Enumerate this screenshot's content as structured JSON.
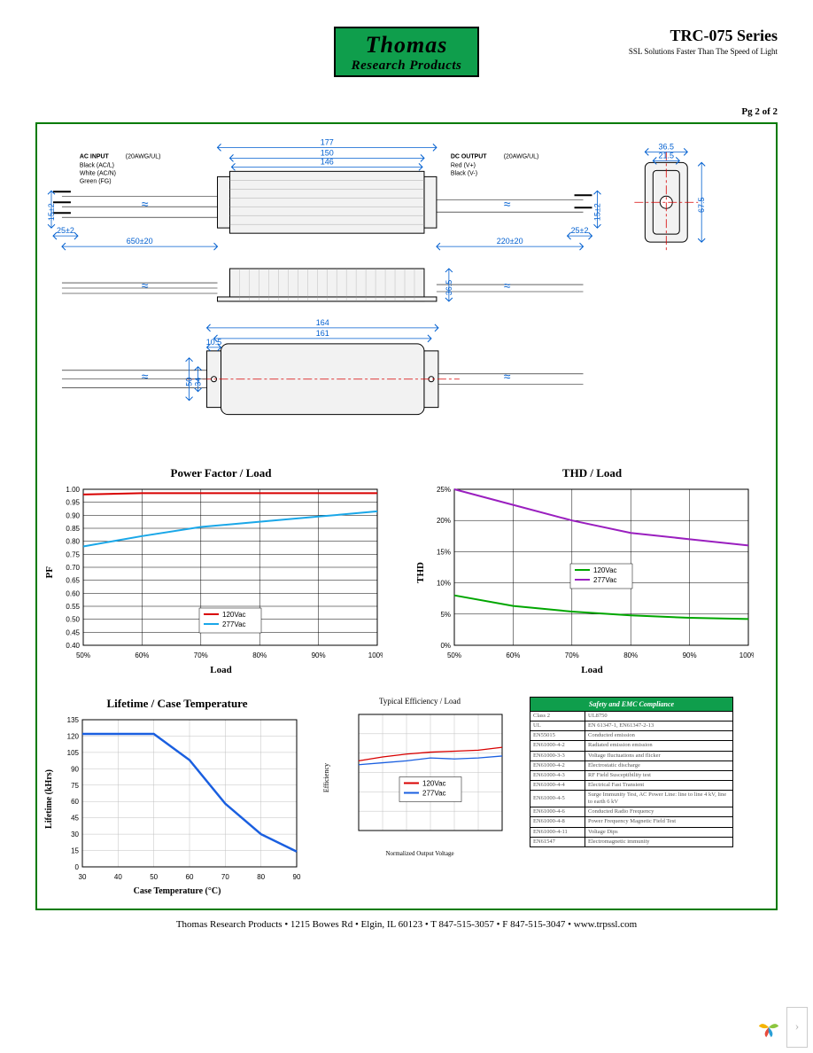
{
  "logo": {
    "line1": "Thomas",
    "line2": "Research Products"
  },
  "title": {
    "main": "TRC-075 Series",
    "sub": "SSL Solutions Faster Than The Speed of Light"
  },
  "page": "Pg 2 of 2",
  "footer": "Thomas Research Products  •  1215 Bowes Rd  •  Elgin, IL 60123  •  T 847-515-3057  •  F 847-515-3047  •  www.trpssl.com",
  "mech": {
    "dim_color": "#005fd0",
    "input_title": "AC INPUT",
    "input_awg": "(20AWG/UL)",
    "output_title": "DC OUTPUT",
    "output_awg": "(20AWG/UL)",
    "in_wires": [
      [
        "Black",
        "(AC/L)"
      ],
      [
        "White",
        "(AC/N)"
      ],
      [
        "Green",
        "(FG)"
      ]
    ],
    "out_wires": [
      [
        "Red",
        "(V+)"
      ],
      [
        "Black",
        "(V-)"
      ]
    ],
    "L_cable_in": "650±20",
    "L_cable_out": "220±20",
    "strip_in": "25±2",
    "strip_out": "25±2",
    "h_strip": "15±2",
    "top_177": "177",
    "top_150": "150",
    "top_146": "146",
    "side_h": "36.5",
    "end_w": "36.5",
    "end_iw": "21.5",
    "end_h": "67.5",
    "plan_164": "164",
    "plan_161": "161",
    "plan_105": "10.5",
    "plan_50": "50",
    "plan_34": "34",
    "wire_break": "≈"
  },
  "chart_pf": {
    "type": "line",
    "title": "Power Factor / Load",
    "ylabel": "PF",
    "xlabel": "Load",
    "xlim": [
      50,
      100
    ],
    "xstep": 10,
    "x_suffix": "%",
    "ylim": [
      0.4,
      1.0
    ],
    "ystep": 0.05,
    "grid_color": "#000",
    "bg": "#fff",
    "series": [
      {
        "name": "120Vac",
        "color": "#d80000",
        "width": 2,
        "x": [
          50,
          60,
          70,
          80,
          90,
          100
        ],
        "y": [
          0.98,
          0.985,
          0.985,
          0.985,
          0.985,
          0.985
        ]
      },
      {
        "name": "277Vac",
        "color": "#1aa7e8",
        "width": 2,
        "x": [
          50,
          60,
          70,
          80,
          90,
          100
        ],
        "y": [
          0.78,
          0.82,
          0.855,
          0.875,
          0.895,
          0.915
        ]
      }
    ],
    "legend_pos": "inside-bottom-center"
  },
  "chart_thd": {
    "type": "line",
    "title": "THD / Load",
    "ylabel": "THD",
    "xlabel": "Load",
    "xlim": [
      50,
      100
    ],
    "xstep": 10,
    "x_suffix": "%",
    "ylim": [
      0,
      25
    ],
    "ystep": 5,
    "y_suffix": "%",
    "grid_color": "#000",
    "bg": "#fff",
    "series": [
      {
        "name": "120Vac",
        "color": "#00a600",
        "width": 2,
        "x": [
          50,
          60,
          70,
          80,
          90,
          100
        ],
        "y": [
          8,
          6.3,
          5.4,
          4.8,
          4.4,
          4.2
        ]
      },
      {
        "name": "277Vac",
        "color": "#9a1fbf",
        "width": 2,
        "x": [
          50,
          60,
          70,
          80,
          90,
          100
        ],
        "y": [
          25,
          22.5,
          20,
          18,
          17,
          16
        ]
      }
    ],
    "legend_pos": "inside-center"
  },
  "chart_life": {
    "type": "line",
    "title": "Lifetime / Case Temperature",
    "ylabel": "Lifetime   (kHrs)",
    "xlabel": "Case Temperature     (°C)",
    "xlim": [
      30,
      90
    ],
    "xstep": 10,
    "ylim": [
      0,
      135
    ],
    "ystep": 15,
    "grid_color": "#c0c0c0",
    "bg": "#fff",
    "series": [
      {
        "name": "Lifetime",
        "color": "#1a5fe0",
        "width": 2.5,
        "x": [
          30,
          40,
          50,
          60,
          70,
          80,
          90
        ],
        "y": [
          122,
          122,
          122,
          98,
          58,
          30,
          14
        ]
      }
    ]
  },
  "chart_eff": {
    "type": "line",
    "title": "Typical Efficiency / Load",
    "ylabel": "Efficiency",
    "xlabel": "Normalized Output Voltage",
    "xlim": [
      0,
      6
    ],
    "xstep": 1,
    "hide_xticks": true,
    "ylim": [
      0,
      6
    ],
    "ystep": 1,
    "hide_yticks": true,
    "grid_color": "#c0c0c0",
    "bg": "#fff",
    "series": [
      {
        "name": "120Vac",
        "color": "#d80000",
        "width": 1.3,
        "x": [
          0,
          1,
          2,
          3,
          4,
          5,
          6
        ],
        "y": [
          3.6,
          3.8,
          3.95,
          4.05,
          4.1,
          4.15,
          4.3
        ]
      },
      {
        "name": "277Vac",
        "color": "#1a5fe0",
        "width": 1.3,
        "x": [
          0,
          1,
          2,
          3,
          4,
          5,
          6
        ],
        "y": [
          3.4,
          3.5,
          3.6,
          3.75,
          3.7,
          3.75,
          3.85
        ]
      }
    ],
    "legend_pos": "inside-center-low"
  },
  "compliance": {
    "header": "Safety and EMC Compliance",
    "rows": [
      [
        "Class 2",
        "UL8750"
      ],
      [
        "UL",
        "EN 61347-1, EN61347-2-13"
      ],
      [
        "EN55015",
        "Conducted emission"
      ],
      [
        "EN61000-4-2",
        "Radiated emission emission"
      ],
      [
        "EN61000-3-3",
        "Voltage fluctuations and flicker"
      ],
      [
        "EN61000-4-2",
        "Electrostatic discharge"
      ],
      [
        "EN61000-4-3",
        "RF Field Susceptibility test"
      ],
      [
        "EN61000-4-4",
        "Electrical Fast Transient"
      ],
      [
        "EN61000-4-5",
        "Surge Immunity Test, AC Power Line: line to line 4 kV, line to earth 6 kV"
      ],
      [
        "EN61000-4-6",
        "Conducted Radio Frequency"
      ],
      [
        "EN61000-4-8",
        "Power Frequency Magnetic Field Test"
      ],
      [
        "EN61000-4-11",
        "Voltage Dips"
      ],
      [
        "EN61547",
        "Electromagnetic immunity"
      ]
    ]
  }
}
